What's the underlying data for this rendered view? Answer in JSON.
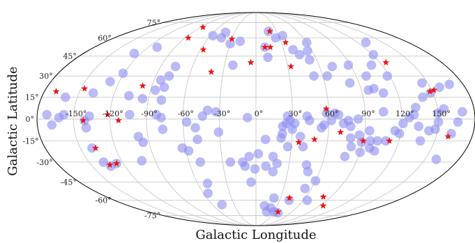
{
  "chart_data": {
    "type": "scatter",
    "projection": "mollweide",
    "xlabel": "Galactic Longitude",
    "ylabel": "Galactic Latitude",
    "xlim": [
      -180,
      180
    ],
    "ylim": [
      -90,
      90
    ],
    "grid": true,
    "x_ticks": [
      "-150°",
      "-120°",
      "-90°",
      "-60°",
      "-30°",
      "0°",
      "30°",
      "60°",
      "90°",
      "120°",
      "150°"
    ],
    "y_ticks": [
      {
        "lat": 75,
        "label": "75°"
      },
      {
        "lat": 60,
        "label": "60°"
      },
      {
        "lat": 45,
        "label": "45°"
      },
      {
        "lat": 30,
        "label": "30°"
      },
      {
        "lat": 15,
        "label": "15°"
      },
      {
        "lat": 0,
        "label": "0°"
      },
      {
        "lat": -15,
        "label": "-15°"
      },
      {
        "lat": -30,
        "label": "-30°"
      },
      {
        "lat": -45,
        "label": "-45°"
      },
      {
        "lat": -60,
        "label": "-60°"
      },
      {
        "lat": -75,
        "label": "-75°"
      }
    ],
    "colors": {
      "circle": "#8c8cf0",
      "star": "#ee1111",
      "grid": "#c8c8c8"
    },
    "series": [
      {
        "marker": "circle",
        "points": [
          [
            -172,
            3
          ],
          [
            -168,
            -4
          ],
          [
            -160,
            15
          ],
          [
            -162,
            1
          ],
          [
            -158,
            3
          ],
          [
            -141,
            -1
          ],
          [
            -140,
            -6
          ],
          [
            -137,
            2
          ],
          [
            -140,
            -20
          ],
          [
            -137,
            -30
          ],
          [
            -133,
            -33
          ],
          [
            -126,
            -31
          ],
          [
            -138,
            18
          ],
          [
            -128,
            26
          ],
          [
            -121,
            32
          ],
          [
            -107,
            16
          ],
          [
            -104,
            3
          ],
          [
            -95,
            -16
          ],
          [
            -98,
            -12
          ],
          [
            -102,
            -29
          ],
          [
            -127,
            47
          ],
          [
            -110,
            52
          ],
          [
            -84,
            27
          ],
          [
            -78,
            30
          ],
          [
            -76,
            37
          ],
          [
            -79,
            13
          ],
          [
            -77,
            -7
          ],
          [
            -78,
            1
          ],
          [
            -79,
            22
          ],
          [
            -95,
            14
          ],
          [
            -86,
            20
          ],
          [
            -82,
            3
          ],
          [
            -63,
            -20
          ],
          [
            -58,
            -22
          ],
          [
            -50,
            -30
          ],
          [
            -50,
            -6
          ],
          [
            -49,
            -14
          ],
          [
            -44,
            2
          ],
          [
            -40,
            6
          ],
          [
            -33,
            5
          ],
          [
            -31,
            -9
          ],
          [
            -23,
            -30
          ],
          [
            -50,
            -46
          ],
          [
            -55,
            -54
          ],
          [
            -47,
            -64
          ],
          [
            -57,
            62
          ],
          [
            -44,
            60
          ],
          [
            -43,
            65
          ],
          [
            -30,
            55
          ],
          [
            -19,
            57
          ],
          [
            -22,
            38
          ],
          [
            -57,
            -2
          ],
          [
            -12,
            -30
          ],
          [
            -6,
            -26
          ],
          [
            -7,
            1
          ],
          [
            -10,
            -33
          ],
          [
            -5,
            -45
          ],
          [
            -1,
            -35
          ],
          [
            2,
            -24
          ],
          [
            9,
            -33
          ],
          [
            8,
            -14
          ],
          [
            15,
            -26
          ],
          [
            16,
            -37
          ],
          [
            19,
            -31
          ],
          [
            21,
            -13
          ],
          [
            22,
            -5
          ],
          [
            25,
            -3
          ],
          [
            22,
            -10
          ],
          [
            26,
            2
          ],
          [
            27,
            -19
          ],
          [
            30,
            -7
          ],
          [
            32,
            -3
          ],
          [
            28,
            -1
          ],
          [
            22,
            -58
          ],
          [
            12,
            -65
          ],
          [
            18,
            -71
          ],
          [
            37,
            -12
          ],
          [
            40,
            -19
          ],
          [
            44,
            -1
          ],
          [
            46,
            -32
          ],
          [
            49,
            -37
          ],
          [
            53,
            -50
          ],
          [
            60,
            -44
          ],
          [
            65,
            -60
          ],
          [
            42,
            -60
          ],
          [
            30,
            -71
          ],
          [
            22,
            -67
          ],
          [
            38,
            -72
          ],
          [
            42,
            2
          ],
          [
            54,
            -6
          ],
          [
            56,
            -4
          ],
          [
            58,
            4
          ],
          [
            62,
            -1
          ],
          [
            65,
            4
          ],
          [
            68,
            3
          ],
          [
            72,
            -3
          ],
          [
            76,
            -1
          ],
          [
            78,
            -5
          ],
          [
            79,
            -13
          ],
          [
            81,
            -19
          ],
          [
            84,
            0
          ],
          [
            78,
            -26
          ],
          [
            90,
            -23
          ],
          [
            94,
            -8
          ],
          [
            86,
            -11
          ],
          [
            89,
            -16
          ],
          [
            96,
            -15
          ],
          [
            102,
            -15
          ],
          [
            102,
            -22
          ],
          [
            109,
            -15
          ],
          [
            115,
            -8
          ],
          [
            119,
            -10
          ],
          [
            121,
            -3
          ],
          [
            126,
            1
          ],
          [
            130,
            3
          ],
          [
            134,
            -5
          ],
          [
            138,
            -15
          ],
          [
            143,
            -8
          ],
          [
            148,
            -7
          ],
          [
            150,
            -2
          ],
          [
            150,
            4
          ],
          [
            155,
            7
          ],
          [
            162,
            -10
          ],
          [
            160,
            -28
          ],
          [
            166,
            -2
          ],
          [
            170,
            5
          ],
          [
            168,
            24
          ],
          [
            158,
            22
          ],
          [
            148,
            18
          ],
          [
            145,
            25
          ],
          [
            132,
            8
          ],
          [
            140,
            15
          ],
          [
            97,
            -20
          ],
          [
            105,
            5
          ],
          [
            96,
            20
          ],
          [
            108,
            18
          ],
          [
            82,
            25
          ],
          [
            72,
            37
          ],
          [
            60,
            56
          ],
          [
            55,
            49
          ],
          [
            53,
            42
          ],
          [
            45,
            46
          ],
          [
            40,
            50
          ],
          [
            35,
            62
          ],
          [
            25,
            60
          ],
          [
            18,
            66
          ],
          [
            10,
            52
          ],
          [
            12,
            44
          ],
          [
            52,
            30
          ],
          [
            64,
            30
          ],
          [
            88,
            38
          ],
          [
            99,
            30
          ],
          [
            101,
            21
          ],
          [
            110,
            38
          ],
          [
            118,
            30
          ],
          [
            121,
            46
          ],
          [
            130,
            56
          ]
        ]
      },
      {
        "marker": "star",
        "points": [
          [
            -170,
            19
          ],
          [
            -147,
            21
          ],
          [
            -142,
            -1
          ],
          [
            -137,
            -20
          ],
          [
            -133,
            -32
          ],
          [
            -126,
            -31
          ],
          [
            -122,
            3
          ],
          [
            -113,
            -1
          ],
          [
            -98,
            23
          ],
          [
            -86,
            70
          ],
          [
            -86,
            60
          ],
          [
            -57,
            50
          ],
          [
            -41,
            33
          ],
          [
            -30,
            59
          ],
          [
            -5,
            40
          ],
          [
            10,
            52
          ],
          [
            16,
            52
          ],
          [
            20,
            66
          ],
          [
            33,
            37
          ],
          [
            35,
            56
          ],
          [
            37,
            -71
          ],
          [
            49,
            -14
          ],
          [
            58,
            7
          ],
          [
            70,
            -9
          ],
          [
            95,
            -65
          ],
          [
            81,
            -57
          ],
          [
            90,
            -15
          ],
          [
            126,
            40
          ],
          [
            148,
            19
          ],
          [
            152,
            20
          ],
          [
            160,
            -12
          ],
          [
            41,
            -58
          ],
          [
            112,
            -15
          ],
          [
            36,
            -16
          ]
        ]
      }
    ]
  }
}
